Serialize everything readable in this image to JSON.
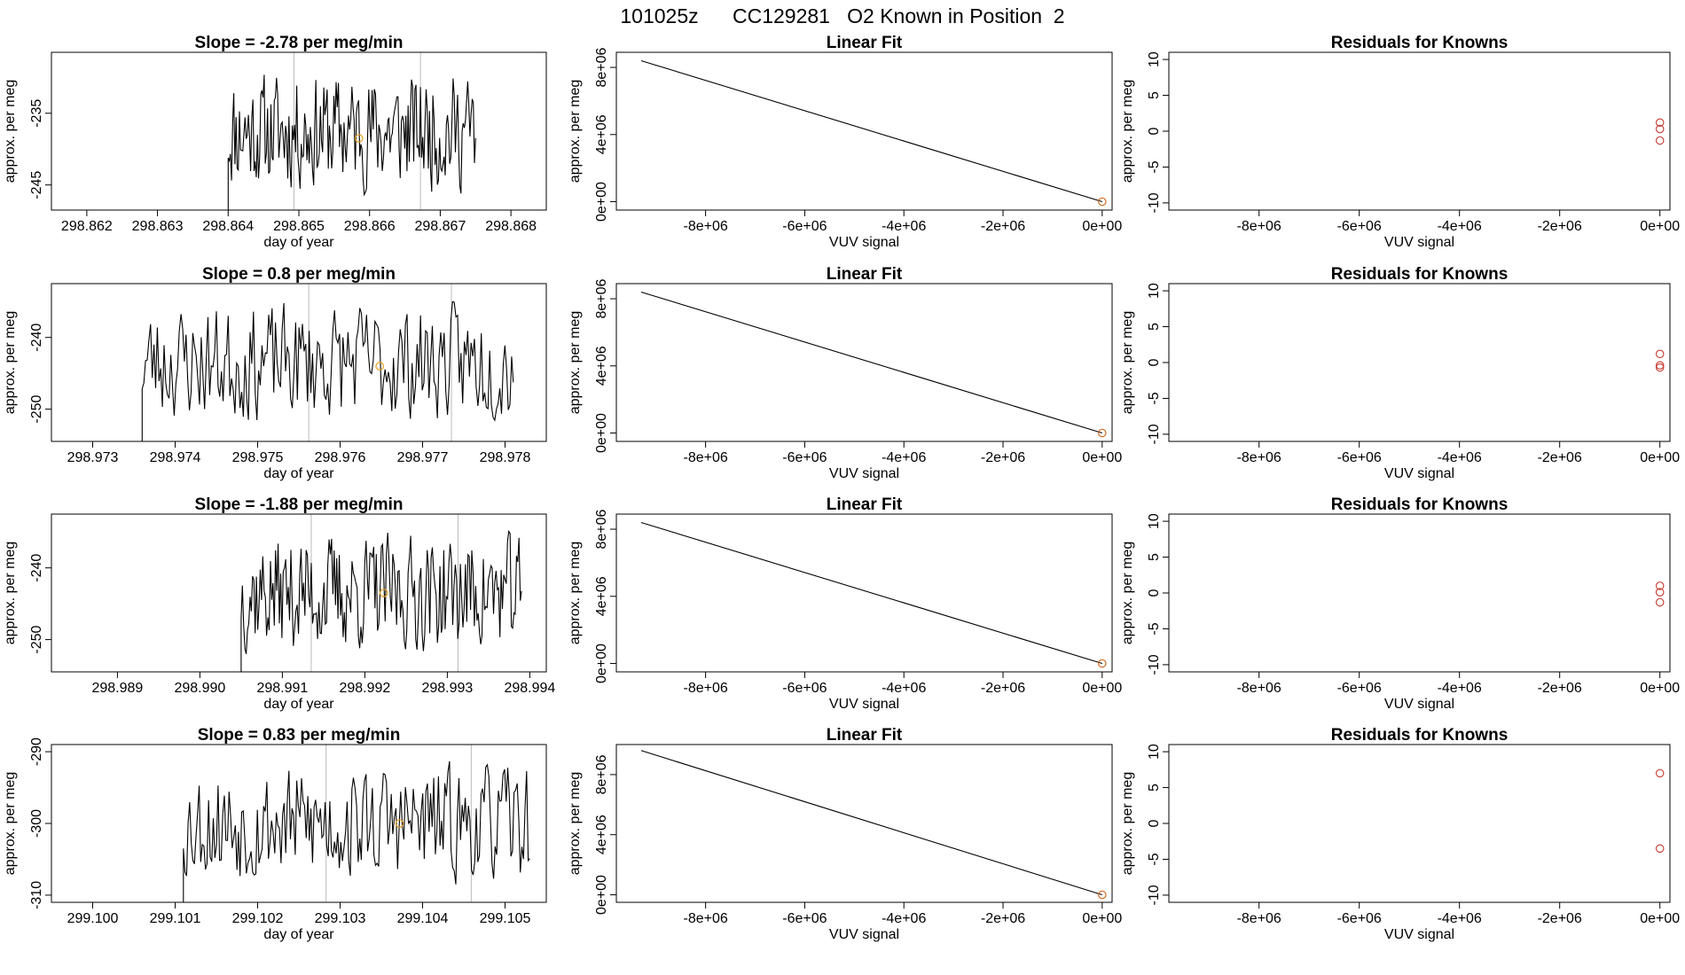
{
  "figure_title": "101025z      CC129281   O2 Known in Position  2",
  "colors": {
    "trace": "#000000",
    "marker_mid": "#e6a01e",
    "marker_fit": "#d2691e",
    "marker_resid": "#c8463c",
    "divider": "#bbbbbb"
  },
  "chart_data": [
    {
      "type": "line",
      "panel": "trace-1",
      "title": "Slope =  -2.78  per meg/min",
      "xlabel": "day of year",
      "ylabel": "approx. per meg",
      "xlim": [
        298.8615,
        298.8685
      ],
      "ylim": [
        -248.5,
        -226.5
      ],
      "xticks": [
        298.862,
        298.863,
        298.864,
        298.865,
        298.866,
        298.867,
        298.868
      ],
      "xtick_labels": [
        "298.862",
        "298.863",
        "298.864",
        "298.865",
        "298.866",
        "298.867",
        "298.868"
      ],
      "yticks": [
        -235,
        -245
      ],
      "ytick_labels": [
        "-235",
        "-245"
      ],
      "x_start": 298.864,
      "x_end": 298.8675,
      "dividers": [
        298.86493,
        298.86672
      ],
      "mid_point": {
        "x": 298.86585,
        "y": -238.5
      },
      "seed": 11
    },
    {
      "type": "line",
      "panel": "fit-1",
      "title": "Linear Fit",
      "xlabel": "VUV signal",
      "ylabel": "approx. per meg",
      "xlim": [
        -9800000.0,
        200000.0
      ],
      "ylim": [
        -500000.0,
        8900000.0
      ],
      "xticks": [
        -8000000.0,
        -6000000.0,
        -4000000.0,
        -2000000.0,
        0
      ],
      "xtick_labels": [
        "-8e+06",
        "-6e+06",
        "-4e+06",
        "-2e+06",
        "0e+00"
      ],
      "yticks": [
        0,
        4000000.0,
        8000000.0
      ],
      "ytick_labels": [
        "0e+00",
        "4e+06",
        "8e+06"
      ],
      "line": {
        "x": [
          -9300000.0,
          0
        ],
        "y": [
          8400000.0,
          0
        ]
      },
      "points": [
        {
          "x": 0,
          "y": 0
        }
      ]
    },
    {
      "type": "scatter",
      "panel": "resid-1",
      "title": "Residuals for Knowns",
      "xlabel": "VUV signal",
      "ylabel": "approx. per meg",
      "xlim": [
        -9800000.0,
        200000.0
      ],
      "ylim": [
        -11,
        11
      ],
      "xticks": [
        -8000000.0,
        -6000000.0,
        -4000000.0,
        -2000000.0,
        0
      ],
      "xtick_labels": [
        "-8e+06",
        "-6e+06",
        "-4e+06",
        "-2e+06",
        "0e+00"
      ],
      "yticks": [
        -10,
        -5,
        0,
        5,
        10
      ],
      "ytick_labels": [
        "-10",
        "-5",
        "0",
        "5",
        "10"
      ],
      "points": [
        {
          "x": 0,
          "y": 1.2
        },
        {
          "x": 0,
          "y": 0.3
        },
        {
          "x": 0,
          "y": -1.3
        }
      ]
    },
    {
      "type": "line",
      "panel": "trace-2",
      "title": "Slope =  0.8  per meg/min",
      "xlabel": "day of year",
      "ylabel": "approx. per meg",
      "xlim": [
        298.9725,
        298.9785
      ],
      "ylim": [
        -254.5,
        -232.5
      ],
      "xticks": [
        298.973,
        298.974,
        298.975,
        298.976,
        298.977,
        298.978
      ],
      "xtick_labels": [
        "298.973",
        "298.974",
        "298.975",
        "298.976",
        "298.977",
        "298.978"
      ],
      "yticks": [
        -240,
        -250
      ],
      "ytick_labels": [
        "-240",
        "-250"
      ],
      "x_start": 298.9736,
      "x_end": 298.9781,
      "dividers": [
        298.97562,
        298.97735
      ],
      "mid_point": {
        "x": 298.97648,
        "y": -244.0
      },
      "seed": 23
    },
    {
      "type": "line",
      "panel": "fit-2",
      "title": "Linear Fit",
      "xlabel": "VUV signal",
      "ylabel": "approx. per meg",
      "xlim": [
        -9800000.0,
        200000.0
      ],
      "ylim": [
        -500000.0,
        8900000.0
      ],
      "xticks": [
        -8000000.0,
        -6000000.0,
        -4000000.0,
        -2000000.0,
        0
      ],
      "xtick_labels": [
        "-8e+06",
        "-6e+06",
        "-4e+06",
        "-2e+06",
        "0e+00"
      ],
      "yticks": [
        0,
        4000000.0,
        8000000.0
      ],
      "ytick_labels": [
        "0e+00",
        "4e+06",
        "8e+06"
      ],
      "line": {
        "x": [
          -9300000.0,
          0
        ],
        "y": [
          8400000.0,
          0
        ]
      },
      "points": [
        {
          "x": 0,
          "y": 0
        }
      ]
    },
    {
      "type": "scatter",
      "panel": "resid-2",
      "title": "Residuals for Knowns",
      "xlabel": "VUV signal",
      "ylabel": "approx. per meg",
      "xlim": [
        -9800000.0,
        200000.0
      ],
      "ylim": [
        -11,
        11
      ],
      "xticks": [
        -8000000.0,
        -6000000.0,
        -4000000.0,
        -2000000.0,
        0
      ],
      "xtick_labels": [
        "-8e+06",
        "-6e+06",
        "-4e+06",
        "-2e+06",
        "0e+00"
      ],
      "yticks": [
        -10,
        -5,
        0,
        5,
        10
      ],
      "ytick_labels": [
        "-10",
        "-5",
        "0",
        "5",
        "10"
      ],
      "points": [
        {
          "x": 0,
          "y": 1.2
        },
        {
          "x": 0,
          "y": -0.4
        },
        {
          "x": 0,
          "y": -0.7
        }
      ]
    },
    {
      "type": "line",
      "panel": "trace-3",
      "title": "Slope =  -1.88  per meg/min",
      "xlabel": "day of year",
      "ylabel": "approx. per meg",
      "xlim": [
        298.9882,
        298.9942
      ],
      "ylim": [
        -254.5,
        -232.5
      ],
      "xticks": [
        298.989,
        298.99,
        298.991,
        298.992,
        298.993,
        298.994
      ],
      "xtick_labels": [
        "298.989",
        "298.990",
        "298.991",
        "298.992",
        "298.993",
        "298.994"
      ],
      "yticks": [
        -240,
        -250
      ],
      "ytick_labels": [
        "-240",
        "-250"
      ],
      "x_start": 298.9905,
      "x_end": 298.9939,
      "dividers": [
        298.99135,
        298.99313
      ],
      "mid_point": {
        "x": 298.99223,
        "y": -243.5
      },
      "seed": 37
    },
    {
      "type": "line",
      "panel": "fit-3",
      "title": "Linear Fit",
      "xlabel": "VUV signal",
      "ylabel": "approx. per meg",
      "xlim": [
        -9800000.0,
        200000.0
      ],
      "ylim": [
        -500000.0,
        8900000.0
      ],
      "xticks": [
        -8000000.0,
        -6000000.0,
        -4000000.0,
        -2000000.0,
        0
      ],
      "xtick_labels": [
        "-8e+06",
        "-6e+06",
        "-4e+06",
        "-2e+06",
        "0e+00"
      ],
      "yticks": [
        0,
        4000000.0,
        8000000.0
      ],
      "ytick_labels": [
        "0e+00",
        "4e+06",
        "8e+06"
      ],
      "line": {
        "x": [
          -9300000.0,
          0
        ],
        "y": [
          8400000.0,
          0
        ]
      },
      "points": [
        {
          "x": 0,
          "y": 0
        }
      ]
    },
    {
      "type": "scatter",
      "panel": "resid-3",
      "title": "Residuals for Knowns",
      "xlabel": "VUV signal",
      "ylabel": "approx. per meg",
      "xlim": [
        -9800000.0,
        200000.0
      ],
      "ylim": [
        -11,
        11
      ],
      "xticks": [
        -8000000.0,
        -6000000.0,
        -4000000.0,
        -2000000.0,
        0
      ],
      "xtick_labels": [
        "-8e+06",
        "-6e+06",
        "-4e+06",
        "-2e+06",
        "0e+00"
      ],
      "yticks": [
        -10,
        -5,
        0,
        5,
        10
      ],
      "ytick_labels": [
        "-10",
        "-5",
        "0",
        "5",
        "10"
      ],
      "points": [
        {
          "x": 0,
          "y": 1.0
        },
        {
          "x": 0,
          "y": 0.1
        },
        {
          "x": 0,
          "y": -1.3
        }
      ]
    },
    {
      "type": "line",
      "panel": "trace-4",
      "title": "Slope =  0.83  per meg/min",
      "xlabel": "day of year",
      "ylabel": "approx. per meg",
      "xlim": [
        299.0995,
        299.1055
      ],
      "ylim": [
        -311,
        -289
      ],
      "xticks": [
        299.1,
        299.101,
        299.102,
        299.103,
        299.104,
        299.105
      ],
      "xtick_labels": [
        "299.100",
        "299.101",
        "299.102",
        "299.103",
        "299.104",
        "299.105"
      ],
      "yticks": [
        -290,
        -300,
        -310
      ],
      "ytick_labels": [
        "-290",
        "-300",
        "-310"
      ],
      "x_start": 299.1011,
      "x_end": 299.1053,
      "dividers": [
        299.10283,
        299.10459
      ],
      "mid_point": {
        "x": 299.10372,
        "y": -300.0
      },
      "seed": 53
    },
    {
      "type": "line",
      "panel": "fit-4",
      "title": "Linear Fit",
      "xlabel": "VUV signal",
      "ylabel": "approx. per meg",
      "xlim": [
        -9800000.0,
        200000.0
      ],
      "ylim": [
        -500000.0,
        10000000.0
      ],
      "xticks": [
        -8000000.0,
        -6000000.0,
        -4000000.0,
        -2000000.0,
        0
      ],
      "xtick_labels": [
        "-8e+06",
        "-6e+06",
        "-4e+06",
        "-2e+06",
        "0e+00"
      ],
      "yticks": [
        0,
        4000000.0,
        8000000.0
      ],
      "ytick_labels": [
        "0e+00",
        "4e+06",
        "8e+06"
      ],
      "line": {
        "x": [
          -9300000.0,
          0
        ],
        "y": [
          9600000.0,
          0
        ]
      },
      "points": [
        {
          "x": 0,
          "y": 0
        }
      ]
    },
    {
      "type": "scatter",
      "panel": "resid-4",
      "title": "Residuals for Knowns",
      "xlabel": "VUV signal",
      "ylabel": "approx. per meg",
      "xlim": [
        -9800000.0,
        200000.0
      ],
      "ylim": [
        -11,
        11
      ],
      "xticks": [
        -8000000.0,
        -6000000.0,
        -4000000.0,
        -2000000.0,
        0
      ],
      "xtick_labels": [
        "-8e+06",
        "-6e+06",
        "-4e+06",
        "-2e+06",
        "0e+00"
      ],
      "yticks": [
        -10,
        -5,
        0,
        5,
        10
      ],
      "ytick_labels": [
        "-10",
        "-5",
        "0",
        "5",
        "10"
      ],
      "points": [
        {
          "x": 0,
          "y": 7.0
        },
        {
          "x": 0,
          "y": -3.5
        }
      ]
    }
  ]
}
